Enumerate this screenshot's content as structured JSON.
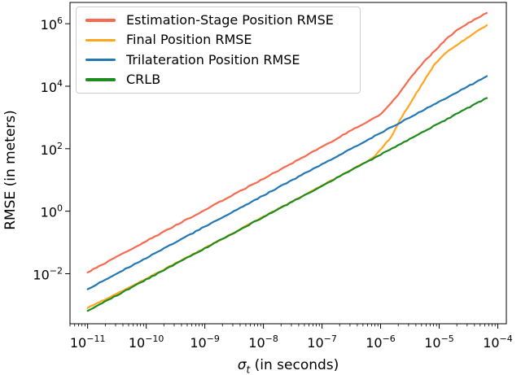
{
  "chart_data": {
    "type": "line",
    "title": "",
    "xlabel": "σ_t (in seconds)",
    "ylabel": "RMSE (in meters)",
    "xscale": "log",
    "yscale": "log",
    "grid": false,
    "legend_position": "upper left",
    "xlim": [
      5e-12,
      0.00014
    ],
    "ylim": [
      0.00025,
      4800000.0
    ],
    "x_tick_labels": [
      "10^-11",
      "10^-10",
      "10^-9",
      "10^-8",
      "10^-7",
      "10^-6",
      "10^-5",
      "10^-4"
    ],
    "y_tick_labels": [
      "10^-2",
      "10^0",
      "10^2",
      "10^4",
      "10^6"
    ],
    "series": [
      {
        "name": "Estimation-Stage Position RMSE",
        "color": "#f8694f",
        "points": [
          [
            1e-11,
            0.011
          ],
          [
            1e-10,
            0.11
          ],
          [
            1e-09,
            1.1
          ],
          [
            1e-08,
            11
          ],
          [
            1e-07,
            115
          ],
          [
            3.2e-07,
            390
          ],
          [
            1e-06,
            1250
          ],
          [
            2e-06,
            5500
          ],
          [
            3.2e-06,
            18000
          ],
          [
            5e-06,
            50000
          ],
          [
            1e-05,
            190000
          ],
          [
            1.3e-05,
            310000
          ],
          [
            2e-05,
            630000
          ],
          [
            4e-05,
            1350000
          ],
          [
            6.5e-05,
            2200000
          ]
        ]
      },
      {
        "name": "Final Position RMSE",
        "color": "#ffa61e",
        "points": [
          [
            1e-11,
            0.0008
          ],
          [
            3e-11,
            0.0022
          ],
          [
            1e-10,
            0.0068
          ],
          [
            1e-09,
            0.066
          ],
          [
            1e-08,
            0.66
          ],
          [
            1e-07,
            6.6
          ],
          [
            3.2e-07,
            21
          ],
          [
            7.4e-07,
            50
          ],
          [
            1.5e-06,
            230
          ],
          [
            2.2e-06,
            900
          ],
          [
            4.3e-06,
            7000
          ],
          [
            8e-06,
            45000
          ],
          [
            1.2e-05,
            105000
          ],
          [
            2e-05,
            210000
          ],
          [
            4e-05,
            500000
          ],
          [
            6.5e-05,
            900000
          ]
        ]
      },
      {
        "name": "Trilateration Position RMSE",
        "color": "#2277b4",
        "points": [
          [
            1e-11,
            0.0032
          ],
          [
            1e-10,
            0.032
          ],
          [
            1e-09,
            0.32
          ],
          [
            1e-08,
            3.2
          ],
          [
            1e-07,
            32
          ],
          [
            1e-06,
            320
          ],
          [
            1e-05,
            3200
          ],
          [
            3e-05,
            9500
          ],
          [
            6.5e-05,
            21000
          ]
        ]
      },
      {
        "name": "CRLB",
        "color": "#1f8b1f",
        "points": [
          [
            1e-11,
            0.00065
          ],
          [
            1e-10,
            0.0065
          ],
          [
            1e-09,
            0.065
          ],
          [
            1e-08,
            0.65
          ],
          [
            1e-07,
            6.5
          ],
          [
            1e-06,
            65
          ],
          [
            1e-05,
            650
          ],
          [
            3e-05,
            1950
          ],
          [
            6.5e-05,
            4200
          ]
        ]
      }
    ]
  }
}
